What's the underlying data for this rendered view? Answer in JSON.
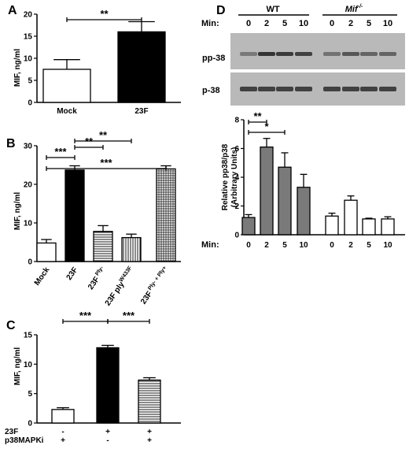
{
  "panels": {
    "A": {
      "label": "A",
      "ylabel": "MIF, ng/ml"
    },
    "B": {
      "label": "B",
      "ylabel": "MIF, ng/ml"
    },
    "C": {
      "label": "C",
      "ylabel": "MIF, ng/ml"
    },
    "D": {
      "label": "D"
    }
  },
  "blot": {
    "min_label": "Min:",
    "wt_label": "WT",
    "mif_label": "Mif",
    "mif_sup": "-/-",
    "time_labels": [
      "0",
      "2",
      "5",
      "10",
      "0",
      "2",
      "5",
      "10"
    ],
    "row_labels": [
      "pp-38",
      "p-38"
    ]
  },
  "colors": {
    "black": "#000000",
    "grey": "#7a7a7a",
    "white": "#ffffff",
    "blot_bg": "#b9b9b9",
    "band": "#2c2c2c"
  },
  "chart_data": [
    {
      "id": "A",
      "type": "bar",
      "categories": [
        "Mock",
        "23F"
      ],
      "values": [
        7.5,
        16
      ],
      "errors": [
        2.2,
        2.3
      ],
      "fills": [
        "white",
        "black"
      ],
      "ylabel": "MIF, ng/ml",
      "ylim": [
        0,
        20
      ],
      "yticks": [
        0,
        5,
        10,
        15,
        20
      ],
      "significance": [
        {
          "from": 0,
          "to": 1,
          "label": "**"
        }
      ]
    },
    {
      "id": "B",
      "type": "bar",
      "categories": [
        "Mock",
        "23F",
        "23F Ply-",
        "23F ply W433F",
        "23F Ply- + Ply+"
      ],
      "category_parts": [
        {
          "main": "Mock",
          "sup": ""
        },
        {
          "main": "23F",
          "sup": ""
        },
        {
          "main": "23F",
          "sup": " Ply-"
        },
        {
          "main": "23F ply",
          "sup": "W433F"
        },
        {
          "main": "23F",
          "sup": " Ply- + Ply+"
        }
      ],
      "values": [
        4.8,
        23.7,
        7.8,
        6.2,
        24.0
      ],
      "errors": [
        0.9,
        1.1,
        1.5,
        0.9,
        0.8
      ],
      "fills": [
        "white",
        "black",
        "hstripe",
        "vstripe",
        "grid"
      ],
      "ylabel": "MIF, ng/ml",
      "ylim": [
        0,
        30
      ],
      "yticks": [
        0,
        10,
        20,
        30
      ],
      "significance": [
        {
          "from": 0,
          "to": 1,
          "label": "***"
        },
        {
          "from": 1,
          "to": 2,
          "label": "**"
        },
        {
          "from": 1,
          "to": 3,
          "label": "**"
        },
        {
          "from": 0,
          "to": 4,
          "label": "***"
        }
      ]
    },
    {
      "id": "C",
      "type": "bar",
      "categories": [
        "23F - / p38MAPKi +",
        "23F + / p38MAPKi -",
        "23F + / p38MAPKi +"
      ],
      "values": [
        2.3,
        12.8,
        7.3
      ],
      "errors": [
        0.3,
        0.4,
        0.4
      ],
      "fills": [
        "white",
        "black",
        "hstripe"
      ],
      "ylabel": "MIF, ng/ml",
      "ylim": [
        0,
        15
      ],
      "yticks": [
        0,
        5,
        10,
        15
      ],
      "row_labels": [
        "23F",
        "p38MAPKi"
      ],
      "row_values": [
        [
          "-",
          "+",
          "+"
        ],
        [
          "+",
          "-",
          "+"
        ]
      ],
      "significance": [
        {
          "from": 0,
          "to": 1,
          "label": "***"
        },
        {
          "from": 1,
          "to": 2,
          "label": "***"
        }
      ]
    },
    {
      "id": "D",
      "type": "bar",
      "categories": [
        "0",
        "2",
        "5",
        "10",
        "0",
        "2",
        "5",
        "10"
      ],
      "groups": [
        "WT",
        "WT",
        "WT",
        "WT",
        "Mif-/-",
        "Mif-/-",
        "Mif-/-",
        "Mif-/-"
      ],
      "values": [
        1.2,
        6.1,
        4.7,
        3.3,
        1.3,
        2.4,
        1.1,
        1.1
      ],
      "errors": [
        0.2,
        0.6,
        1.0,
        0.9,
        0.2,
        0.3,
        0.05,
        0.15
      ],
      "fills": [
        "grey",
        "grey",
        "grey",
        "grey",
        "white",
        "white",
        "white",
        "white"
      ],
      "xlabel": "Min:",
      "ylabel": "Relative pp38/p38",
      "ylabel2": "(Arbitrary Units)",
      "ylim": [
        0,
        8
      ],
      "yticks": [
        0,
        2,
        4,
        6,
        8
      ],
      "significance": [
        {
          "from": 0,
          "to": 1,
          "label": "**"
        },
        {
          "from": 0,
          "to": 2,
          "label": "*"
        }
      ]
    }
  ]
}
